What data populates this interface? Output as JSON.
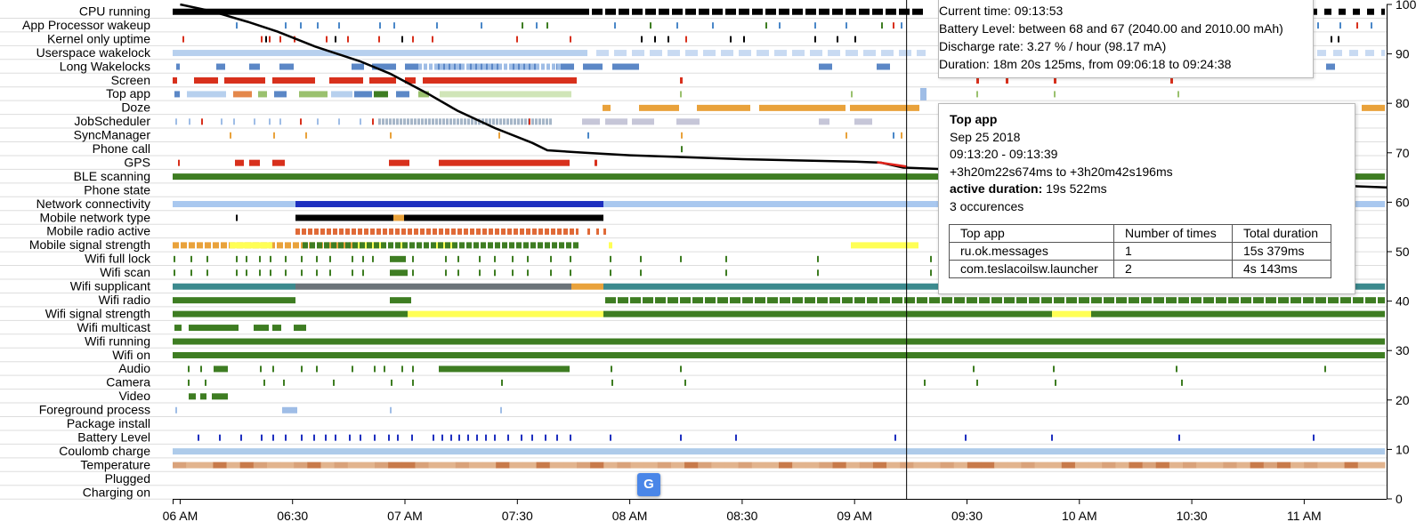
{
  "chart_data": {
    "type": "timeline",
    "rows": [
      "CPU running",
      "App Processor wakeup",
      "Kernel only uptime",
      "Userspace wakelock",
      "Long Wakelocks",
      "Screen",
      "Top app",
      "Doze",
      "JobScheduler",
      "SyncManager",
      "Phone call",
      "GPS",
      "BLE scanning",
      "Phone state",
      "Network connectivity",
      "Mobile network type",
      "Mobile radio active",
      "Mobile signal strength",
      "Wifi full lock",
      "Wifi scan",
      "Wifi supplicant",
      "Wifi radio",
      "Wifi signal strength",
      "Wifi multicast",
      "Wifi running",
      "Wifi on",
      "Audio",
      "Camera",
      "Video",
      "Foreground process",
      "Package install",
      "Battery Level",
      "Coulomb charge",
      "Temperature",
      "Plugged",
      "Charging on"
    ],
    "x_axis": {
      "range": [
        "05:58",
        "11:22"
      ],
      "ticks": [
        {
          "t": "06:00",
          "label": "06 AM"
        },
        {
          "t": "06:30",
          "label": "06:30"
        },
        {
          "t": "07:00",
          "label": "07 AM"
        },
        {
          "t": "07:30",
          "label": "07:30"
        },
        {
          "t": "08:00",
          "label": "08 AM"
        },
        {
          "t": "08:30",
          "label": "08:30"
        },
        {
          "t": "09:00",
          "label": "09 AM"
        },
        {
          "t": "09:30",
          "label": "09:30"
        },
        {
          "t": "10:00",
          "label": "10 AM"
        },
        {
          "t": "10:30",
          "label": "10:30"
        },
        {
          "t": "11:00",
          "label": "11 AM"
        }
      ]
    },
    "y_axis_right": {
      "range": [
        0,
        100
      ],
      "ticks": [
        "0",
        "10",
        "20",
        "30",
        "40",
        "50",
        "60",
        "70",
        "80",
        "90",
        "100"
      ]
    },
    "battery_curve": [
      [
        "06:00",
        100
      ],
      [
        "06:08",
        98.7
      ],
      [
        "06:18",
        96.5
      ],
      [
        "06:26",
        94.5
      ],
      [
        "06:36",
        91.5
      ],
      [
        "06:48",
        88.5
      ],
      [
        "06:56",
        86
      ],
      [
        "07:06",
        82
      ],
      [
        "07:14",
        78.5
      ],
      [
        "07:24",
        75
      ],
      [
        "07:34",
        72
      ],
      [
        "07:38",
        70.5
      ],
      [
        "07:48",
        70
      ],
      [
        "08:00",
        69.5
      ],
      [
        "08:30",
        68.7
      ],
      [
        "09:00",
        68.2
      ],
      [
        "09:07",
        68
      ],
      [
        "09:13",
        67
      ],
      [
        "09:30",
        66.5
      ],
      [
        "10:00",
        65.5
      ],
      [
        "10:30",
        64.5
      ],
      [
        "11:00",
        63.6
      ],
      [
        "11:22",
        63
      ]
    ],
    "highlight_segment": [
      [
        "09:06",
        68.1
      ],
      [
        "09:14",
        67.2
      ]
    ],
    "cursor_time": "09:13:53",
    "legend": "none",
    "grid": "horizontal row separators"
  },
  "tooltips": {
    "summary": {
      "current_time": "Current time: 09:13:53",
      "battery_level": "Battery Level: between 68 and 67 (2040.00 and 2010.00 mAh)",
      "discharge_rate": "Discharge rate: 3.27 % / hour (98.17 mA)",
      "duration": "Duration: 18m 20s 125ms, from 09:06:18 to 09:24:38"
    },
    "top_app": {
      "title": "Top app",
      "date": "Sep 25 2018",
      "time_range": "09:13:20 - 09:13:39",
      "offset_range": "+3h20m22s674ms to +3h20m42s196ms",
      "active_label": "active duration:",
      "active_value": "19s 522ms",
      "occurrences": "3 occurences",
      "table": {
        "headers": [
          "Top app",
          "Number of times",
          "Total duration"
        ],
        "rows": [
          [
            "ru.ok.messages",
            "1",
            "15s 379ms"
          ],
          [
            "com.teslacoilsw.launcher",
            "2",
            "4s 143ms"
          ]
        ]
      }
    }
  },
  "icons": {
    "translate": "translate-icon",
    "translate_glyph": "G"
  },
  "colors": {
    "battery_line": "#000000",
    "highlight": "#e0231b",
    "cursor": "#000000",
    "green": "#3e7d22",
    "red": "#d8301c",
    "blue_dark": "#1d2fbf",
    "light_blue": "#a9c8ef",
    "yellow": "#ffff55",
    "orange": "#e9a23b",
    "teal": "#3c8a8e"
  }
}
